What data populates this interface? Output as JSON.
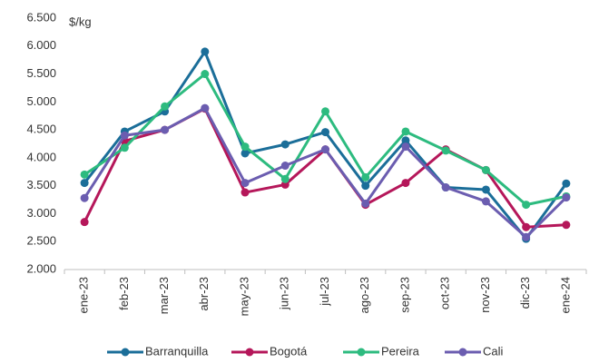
{
  "chart_data": {
    "type": "line",
    "y_label": "$/kg",
    "categories": [
      "ene-23",
      "feb-23",
      "mar-23",
      "abr-23",
      "may-23",
      "jun-23",
      "jul-23",
      "ago-23",
      "sep-23",
      "oct-23",
      "nov-23",
      "dic-23",
      "ene-24"
    ],
    "series": [
      {
        "name": "Barranquilla",
        "color": "#1b6e99",
        "values": [
          3550,
          4470,
          4830,
          5900,
          4080,
          4240,
          4460,
          3500,
          4310,
          3470,
          3430,
          2550,
          3540
        ]
      },
      {
        "name": "Bogotá",
        "color": "#b5175a",
        "values": [
          2850,
          4300,
          4500,
          4880,
          3380,
          3520,
          4150,
          3160,
          3550,
          4150,
          3780,
          2760,
          2800
        ]
      },
      {
        "name": "Pereira",
        "color": "#2dbb7f",
        "values": [
          3700,
          4180,
          4920,
          5500,
          4200,
          3620,
          4830,
          3650,
          4470,
          4130,
          3780,
          3160,
          3310
        ]
      },
      {
        "name": "Cali",
        "color": "#6b5db0",
        "values": [
          3280,
          4400,
          4500,
          4890,
          3550,
          3860,
          4150,
          3180,
          4200,
          3470,
          3220,
          2580,
          3290
        ]
      }
    ],
    "ylim": [
      2000,
      6500
    ],
    "yticks": [
      {
        "value": 2000,
        "label": "2.000"
      },
      {
        "value": 2500,
        "label": "2.500"
      },
      {
        "value": 3000,
        "label": "3.000"
      },
      {
        "value": 3500,
        "label": "3.500"
      },
      {
        "value": 4000,
        "label": "4.000"
      },
      {
        "value": 4500,
        "label": "4.500"
      },
      {
        "value": 5000,
        "label": "5.000"
      },
      {
        "value": 5500,
        "label": "5.500"
      },
      {
        "value": 6000,
        "label": "6.000"
      },
      {
        "value": 6500,
        "label": "6.500"
      }
    ],
    "grid": false
  }
}
